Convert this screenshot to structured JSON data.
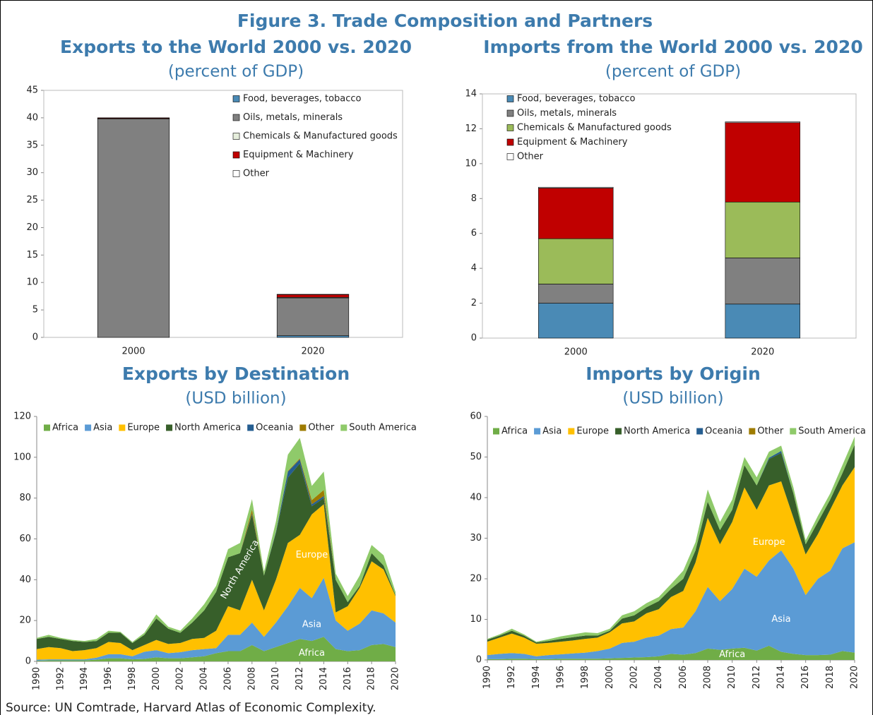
{
  "title": "Figure 3. Trade Composition and Partners",
  "source": "Source: UN Comtrade, Harvard Atlas of Economic Complexity.",
  "chart_data": [
    {
      "type": "bar",
      "title": "Exports to the World 2000 vs. 2020",
      "subtitle": "(percent of GDP)",
      "categories": [
        "2000",
        "2020"
      ],
      "ylim": [
        0,
        45
      ],
      "yticks": [
        0,
        5,
        10,
        15,
        20,
        25,
        30,
        35,
        40,
        45
      ],
      "series": [
        {
          "name": "Food, beverages, tobacco",
          "color": "#4a8ab5",
          "values": [
            0,
            0.3
          ]
        },
        {
          "name": "Oils, metals, minerals",
          "color": "#808080",
          "values": [
            39.8,
            6.9
          ]
        },
        {
          "name": "Chemicals & Manufactured goods",
          "color": "#e6eedc",
          "values": [
            0.1,
            0.1
          ]
        },
        {
          "name": "Equipment & Machinery",
          "color": "#c00000",
          "values": [
            0.1,
            0.5
          ]
        },
        {
          "name": "Other",
          "color": "#ffffff",
          "values": [
            0,
            0.05
          ]
        }
      ]
    },
    {
      "type": "bar",
      "title": "Imports from the World 2000 vs. 2020",
      "subtitle": "(percent of GDP)",
      "categories": [
        "2000",
        "2020"
      ],
      "ylim": [
        0,
        14
      ],
      "yticks": [
        0,
        2,
        4,
        6,
        8,
        10,
        12,
        14
      ],
      "series": [
        {
          "name": "Food, beverages, tobacco",
          "color": "#4a8ab5",
          "values": [
            2.0,
            1.95
          ]
        },
        {
          "name": "Oils, metals, minerals",
          "color": "#808080",
          "values": [
            1.1,
            2.65
          ]
        },
        {
          "name": "Chemicals & Manufactured goods",
          "color": "#9bbb59",
          "values": [
            2.6,
            3.2
          ]
        },
        {
          "name": "Equipment & Machinery",
          "color": "#c00000",
          "values": [
            2.9,
            4.55
          ]
        },
        {
          "name": "Other",
          "color": "#ffffff",
          "values": [
            0.05,
            0.05
          ]
        }
      ]
    },
    {
      "type": "area",
      "title": "Exports by Destination",
      "subtitle": "(USD billion)",
      "x": [
        1990,
        1991,
        1992,
        1993,
        1994,
        1995,
        1996,
        1997,
        1998,
        1999,
        2000,
        2001,
        2002,
        2003,
        2004,
        2005,
        2006,
        2007,
        2008,
        2009,
        2010,
        2011,
        2012,
        2013,
        2014,
        2015,
        2016,
        2017,
        2018,
        2019,
        2020
      ],
      "xlim": [
        1990,
        2020
      ],
      "xticks": [
        1990,
        1992,
        1994,
        1996,
        1998,
        2000,
        2002,
        2004,
        2006,
        2008,
        2010,
        2012,
        2014,
        2016,
        2018,
        2020
      ],
      "ylim": [
        0,
        120
      ],
      "yticks": [
        0,
        20,
        40,
        60,
        80,
        100,
        120
      ],
      "annotations": [
        "North America",
        "Europe",
        "Asia",
        "Africa"
      ],
      "series": [
        {
          "name": "Africa",
          "color": "#70ad47",
          "values": [
            0.3,
            0.5,
            0.5,
            0.5,
            0.5,
            0.8,
            1.5,
            1.5,
            1,
            1.2,
            2,
            1.5,
            1.5,
            2,
            2.5,
            4,
            5,
            5,
            8,
            5,
            7,
            9,
            11,
            10,
            12,
            6,
            5,
            5.5,
            8,
            8.5,
            7
          ]
        },
        {
          "name": "Asia",
          "color": "#5b9bd5",
          "values": [
            0.5,
            0.5,
            0.5,
            0.5,
            0.5,
            1,
            2,
            2,
            1.5,
            3.5,
            3.5,
            2.5,
            3,
            3.5,
            3.5,
            2.5,
            8,
            8,
            11,
            7,
            12,
            18,
            25,
            21,
            29,
            14,
            10,
            13,
            17,
            15,
            12
          ]
        },
        {
          "name": "Europe",
          "color": "#ffc000",
          "values": [
            5.2,
            6,
            5.5,
            4,
            4.5,
            4.7,
            6,
            5.5,
            3,
            3.3,
            5,
            4.5,
            4.5,
            5.5,
            5.5,
            8.5,
            14,
            12,
            21,
            13,
            21,
            31,
            26,
            41,
            36,
            4,
            12,
            17.5,
            24,
            21.5,
            13
          ]
        },
        {
          "name": "North America",
          "color": "#375f2a",
          "values": [
            5,
            5,
            4.5,
            5,
            4,
            3.5,
            4.5,
            5,
            3.5,
            5,
            10.5,
            7.5,
            5,
            8,
            13.5,
            19,
            24,
            28,
            32,
            17,
            23,
            32,
            35,
            4,
            3,
            16,
            2,
            1,
            4,
            2,
            0.5
          ]
        },
        {
          "name": "Oceania",
          "color": "#255e91",
          "values": [
            0,
            0,
            0,
            0,
            0,
            0,
            0,
            0,
            0,
            0,
            0,
            0,
            0,
            0,
            0,
            0,
            0,
            0,
            0.5,
            0,
            0.5,
            3,
            2,
            1,
            1,
            0,
            0,
            0,
            0,
            0,
            0
          ]
        },
        {
          "name": "Other",
          "color": "#9e7b00",
          "values": [
            0,
            0,
            0,
            0,
            0,
            0,
            0,
            0,
            0,
            0,
            0,
            0,
            0,
            0,
            0,
            0,
            0,
            0,
            2,
            0,
            0,
            0.3,
            0.5,
            2,
            3,
            0,
            0,
            0,
            0,
            0,
            0
          ]
        },
        {
          "name": "South America",
          "color": "#8fca6a",
          "values": [
            0.5,
            1,
            0.5,
            0.5,
            0.5,
            1,
            1,
            0.5,
            0.5,
            1,
            2,
            1,
            1,
            2,
            3,
            3,
            4,
            5,
            5,
            2,
            5,
            8,
            10,
            7,
            9,
            3,
            3,
            5,
            4,
            5,
            1.5
          ]
        }
      ]
    },
    {
      "type": "area",
      "title": "Imports by Origin",
      "subtitle": "(USD billion)",
      "x": [
        1990,
        1991,
        1992,
        1993,
        1994,
        1995,
        1996,
        1997,
        1998,
        1999,
        2000,
        2001,
        2002,
        2003,
        2004,
        2005,
        2006,
        2007,
        2008,
        2009,
        2010,
        2011,
        2012,
        2013,
        2014,
        2015,
        2016,
        2017,
        2018,
        2019,
        2020
      ],
      "xlim": [
        1990,
        2020
      ],
      "xticks": [
        1990,
        1992,
        1994,
        1996,
        1998,
        2000,
        2002,
        2004,
        2006,
        2008,
        2010,
        2012,
        2014,
        2016,
        2018,
        2020
      ],
      "ylim": [
        0,
        60
      ],
      "yticks": [
        0,
        10,
        20,
        30,
        40,
        50,
        60
      ],
      "annotations": [
        "Europe",
        "Asia",
        "Africa"
      ],
      "series": [
        {
          "name": "Africa",
          "color": "#70ad47",
          "values": [
            0.2,
            0.2,
            0.3,
            0.3,
            0.2,
            0.2,
            0.3,
            0.3,
            0.3,
            0.3,
            0.4,
            0.5,
            0.6,
            0.7,
            0.9,
            1.5,
            1.3,
            1.7,
            2.8,
            2.5,
            2.8,
            3,
            2.3,
            3.5,
            2,
            1.5,
            1.2,
            1.2,
            1.3,
            2.2,
            1.8
          ]
        },
        {
          "name": "Asia",
          "color": "#5b9bd5",
          "values": [
            1,
            1.3,
            1.4,
            1.2,
            0.7,
            1,
            1.1,
            1.3,
            1.5,
            1.9,
            2.4,
            3.7,
            3.9,
            4.8,
            5.1,
            6.1,
            6.7,
            10.3,
            15.2,
            12,
            14.7,
            19.5,
            18.2,
            21,
            25,
            21,
            14.8,
            18.8,
            20.7,
            25.3,
            27.2
          ]
        },
        {
          "name": "Europe",
          "color": "#ffc000",
          "values": [
            3.3,
            4,
            4.8,
            4,
            3.1,
            3,
            3.1,
            3.2,
            3.4,
            3.3,
            4,
            4.8,
            5,
            6,
            6.5,
            7.9,
            9,
            12,
            17,
            14,
            16.5,
            20,
            16.5,
            18.5,
            17,
            12.5,
            10,
            11,
            15,
            15.5,
            18.5
          ]
        },
        {
          "name": "North America",
          "color": "#375f2a",
          "values": [
            0.5,
            0.5,
            0.7,
            0.5,
            0.3,
            0.5,
            0.7,
            0.8,
            0.8,
            0.5,
            0.4,
            1.2,
            1.5,
            1.5,
            2,
            2,
            3,
            3,
            4,
            3.5,
            3,
            5.5,
            6,
            6.5,
            7,
            6,
            2.5,
            3,
            2.5,
            3,
            5.5
          ]
        },
        {
          "name": "Oceania",
          "color": "#255e91",
          "values": [
            0,
            0,
            0,
            0,
            0,
            0,
            0,
            0,
            0,
            0,
            0,
            0,
            0,
            0,
            0,
            0,
            0,
            0,
            0,
            0,
            0,
            0,
            0,
            0.3,
            0.5,
            0,
            0,
            0,
            0,
            0,
            0
          ]
        },
        {
          "name": "Other",
          "color": "#9e7b00",
          "values": [
            0,
            0,
            0,
            0,
            0,
            0,
            0,
            0,
            0,
            0,
            0,
            0,
            0,
            0,
            0,
            0,
            0,
            0,
            0,
            0,
            0,
            0,
            0,
            0,
            0,
            0,
            0,
            0,
            0,
            0,
            0
          ]
        },
        {
          "name": "South America",
          "color": "#8fca6a",
          "values": [
            0.2,
            0.3,
            0.5,
            0.3,
            0.2,
            0.4,
            0.6,
            0.7,
            0.8,
            0.6,
            0.5,
            0.8,
            1,
            1,
            1,
            1.2,
            2,
            2,
            3,
            2,
            2.5,
            2,
            2,
            1.5,
            1.3,
            1.5,
            1,
            1.5,
            1.5,
            2,
            2
          ]
        }
      ]
    }
  ]
}
